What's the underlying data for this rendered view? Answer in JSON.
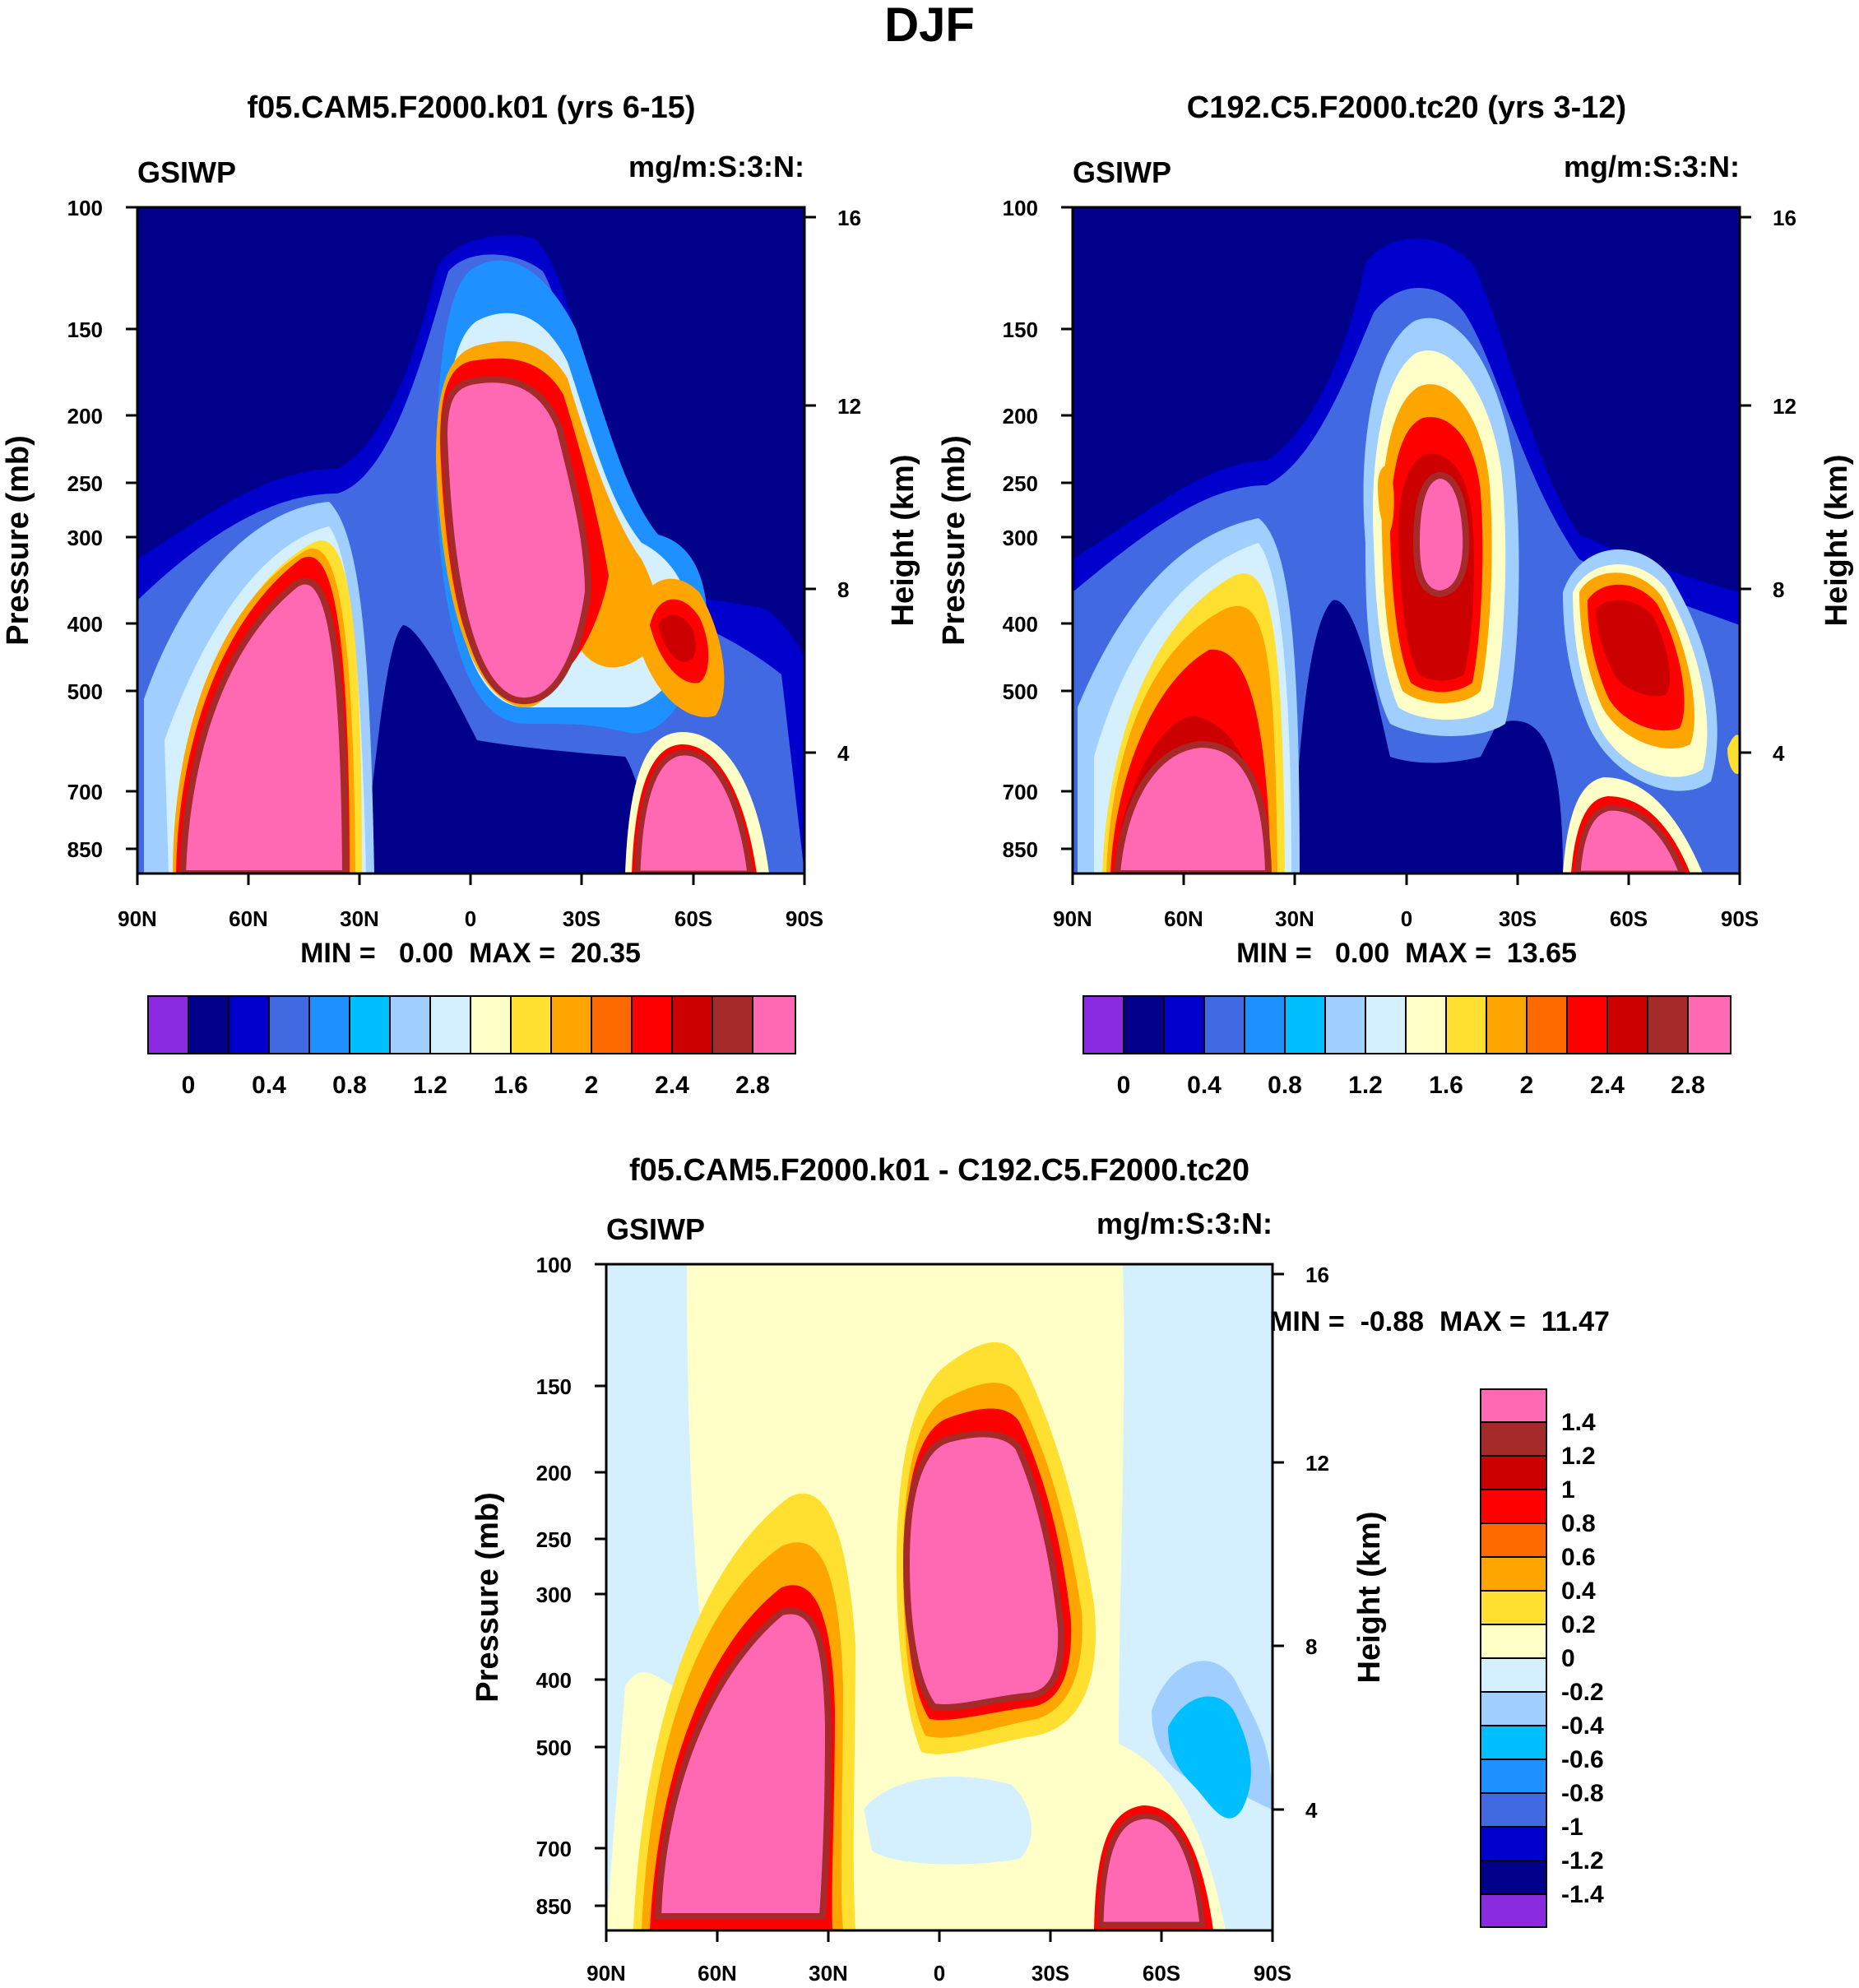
{
  "page_title": "DJF",
  "chart_data": [
    {
      "type": "heatmap",
      "title": "f05.CAM5.F2000.k01 (yrs 6-15)",
      "left_label": "GSIWP",
      "right_label": "mg/m:S:3:N:",
      "ylabel": "Pressure (mb)",
      "ylabel_right": "Height (km)",
      "x_ticks": [
        "90N",
        "60N",
        "30N",
        "0",
        "30S",
        "60S",
        "90S"
      ],
      "y_ticks": [
        "100",
        "150",
        "200",
        "250",
        "300",
        "400",
        "500",
        "700",
        "850"
      ],
      "y_right_ticks": [
        "16",
        "12",
        "8",
        "4"
      ],
      "stats_label": "MIN =   0.00  MAX =  20.35",
      "colorbar_labels": [
        "0",
        "0.4",
        "0.8",
        "1.2",
        "1.6",
        "2",
        "2.4",
        "2.8"
      ],
      "colors": [
        "#8a2be2",
        "#00008b",
        "#0000cd",
        "#4169e1",
        "#1e90ff",
        "#00bfff",
        "#a0cfff",
        "#d4f0ff",
        "#ffffc8",
        "#ffdf30",
        "#ffa500",
        "#ff6a00",
        "#ff0000",
        "#cd0000",
        "#a52a2a",
        "#ff69b4"
      ]
    },
    {
      "type": "heatmap",
      "title": "C192.C5.F2000.tc20 (yrs 3-12)",
      "left_label": "GSIWP",
      "right_label": "mg/m:S:3:N:",
      "ylabel": "Pressure (mb)",
      "ylabel_right": "Height (km)",
      "x_ticks": [
        "90N",
        "60N",
        "30N",
        "0",
        "30S",
        "60S",
        "90S"
      ],
      "y_ticks": [
        "100",
        "150",
        "200",
        "250",
        "300",
        "400",
        "500",
        "700",
        "850"
      ],
      "y_right_ticks": [
        "16",
        "12",
        "8",
        "4"
      ],
      "stats_label": "MIN =   0.00  MAX =  13.65",
      "colorbar_labels": [
        "0",
        "0.4",
        "0.8",
        "1.2",
        "1.6",
        "2",
        "2.4",
        "2.8"
      ],
      "colors": [
        "#8a2be2",
        "#00008b",
        "#0000cd",
        "#4169e1",
        "#1e90ff",
        "#00bfff",
        "#a0cfff",
        "#d4f0ff",
        "#ffffc8",
        "#ffdf30",
        "#ffa500",
        "#ff6a00",
        "#ff0000",
        "#cd0000",
        "#a52a2a",
        "#ff69b4"
      ]
    },
    {
      "type": "heatmap",
      "title": "f05.CAM5.F2000.k01 - C192.C5.F2000.tc20",
      "left_label": "GSIWP",
      "right_label": "mg/m:S:3:N:",
      "ylabel": "Pressure (mb)",
      "ylabel_right": "Height (km)",
      "x_ticks": [
        "90N",
        "60N",
        "30N",
        "0",
        "30S",
        "60S",
        "90S"
      ],
      "y_ticks": [
        "100",
        "150",
        "200",
        "250",
        "300",
        "400",
        "500",
        "700",
        "850"
      ],
      "y_right_ticks": [
        "16",
        "12",
        "8",
        "4"
      ],
      "stats_label": "MIN =  -0.88  MAX =  11.47",
      "colorbar_labels": [
        "1.4",
        "1.2",
        "1",
        "0.8",
        "0.6",
        "0.4",
        "0.2",
        "0",
        "-0.2",
        "-0.4",
        "-0.6",
        "-0.8",
        "-1",
        "-1.2",
        "-1.4"
      ],
      "colors": [
        "#ff69b4",
        "#a52a2a",
        "#cd0000",
        "#ff0000",
        "#ff6a00",
        "#ffa500",
        "#ffdf30",
        "#ffffc8",
        "#d4f0ff",
        "#a0cfff",
        "#00bfff",
        "#1e90ff",
        "#4169e1",
        "#0000cd",
        "#00008b",
        "#8a2be2"
      ]
    }
  ]
}
